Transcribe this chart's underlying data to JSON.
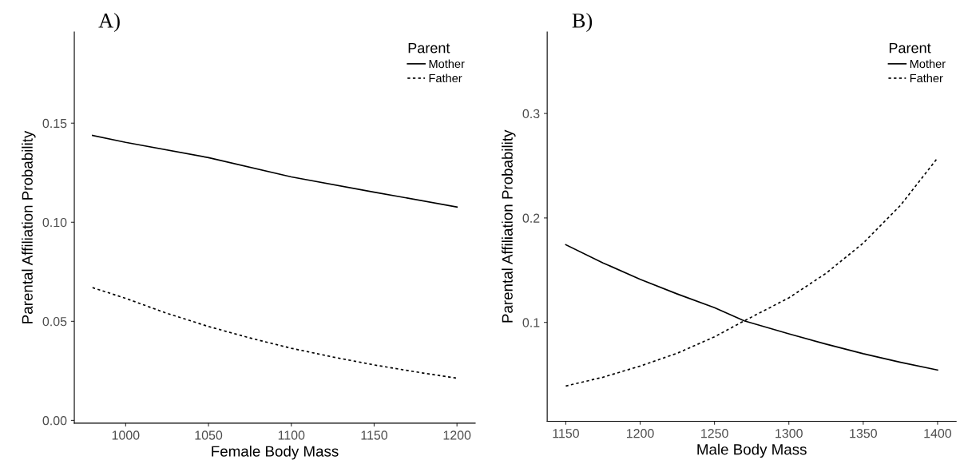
{
  "chart_data": [
    {
      "type": "line",
      "title": "A)",
      "xlabel": "Female Body Mass",
      "ylabel": "Parental Affiliation Probability",
      "legend_title": "Parent",
      "legend": "top right",
      "grid": false,
      "xlim": [
        969,
        1211
      ],
      "xticks": [
        1000,
        1050,
        1100,
        1150,
        1200
      ],
      "ylim": [
        -0.0014,
        0.196
      ],
      "yticks": [
        {
          "value": 0,
          "label": "0.00"
        },
        0.05,
        {
          "value": 0.1,
          "label": "0.10"
        },
        0.15
      ],
      "series": [
        {
          "name": "Mother",
          "color": "#000000",
          "line_style": "solid",
          "x": [
            980,
            1000,
            1050,
            1100,
            1150,
            1200
          ],
          "values": [
            0.1438,
            0.1403,
            0.1326,
            0.1229,
            0.1152,
            0.1077
          ]
        },
        {
          "name": "Father",
          "color": "#000000",
          "line_style": "dotted",
          "x": [
            980,
            1000,
            1025,
            1050,
            1075,
            1100,
            1125,
            1150,
            1175,
            1200
          ],
          "values": [
            0.067,
            0.0616,
            0.054,
            0.0474,
            0.0416,
            0.0364,
            0.032,
            0.028,
            0.0245,
            0.0213
          ]
        }
      ]
    },
    {
      "type": "line",
      "title": "B)",
      "xlabel": "Male Body Mass",
      "ylabel": "Parental Affiliation Probability",
      "legend_title": "Parent",
      "legend": "top right",
      "grid": false,
      "xlim": [
        1137.5,
        1412.5
      ],
      "xticks": [
        1150,
        1200,
        1250,
        1300,
        1350,
        1400
      ],
      "ylim": [
        0.0053,
        0.378
      ],
      "yticks": [
        0.1,
        0.2,
        0.3
      ],
      "series": [
        {
          "name": "Mother",
          "color": "#000000",
          "line_style": "solid",
          "x": [
            1150,
            1175,
            1200,
            1225,
            1250,
            1270,
            1300,
            1325,
            1350,
            1375,
            1400
          ],
          "values": [
            0.1744,
            0.157,
            0.1412,
            0.1272,
            0.1141,
            0.1015,
            0.0891,
            0.0792,
            0.07,
            0.0618,
            0.0544
          ]
        },
        {
          "name": "Father",
          "color": "#000000",
          "line_style": "dotted",
          "x": [
            1150,
            1175,
            1200,
            1225,
            1250,
            1270,
            1300,
            1325,
            1350,
            1375,
            1400
          ],
          "values": [
            0.0391,
            0.0475,
            0.0582,
            0.0705,
            0.0862,
            0.1015,
            0.1235,
            0.147,
            0.1759,
            0.212,
            0.2574
          ]
        }
      ]
    }
  ]
}
